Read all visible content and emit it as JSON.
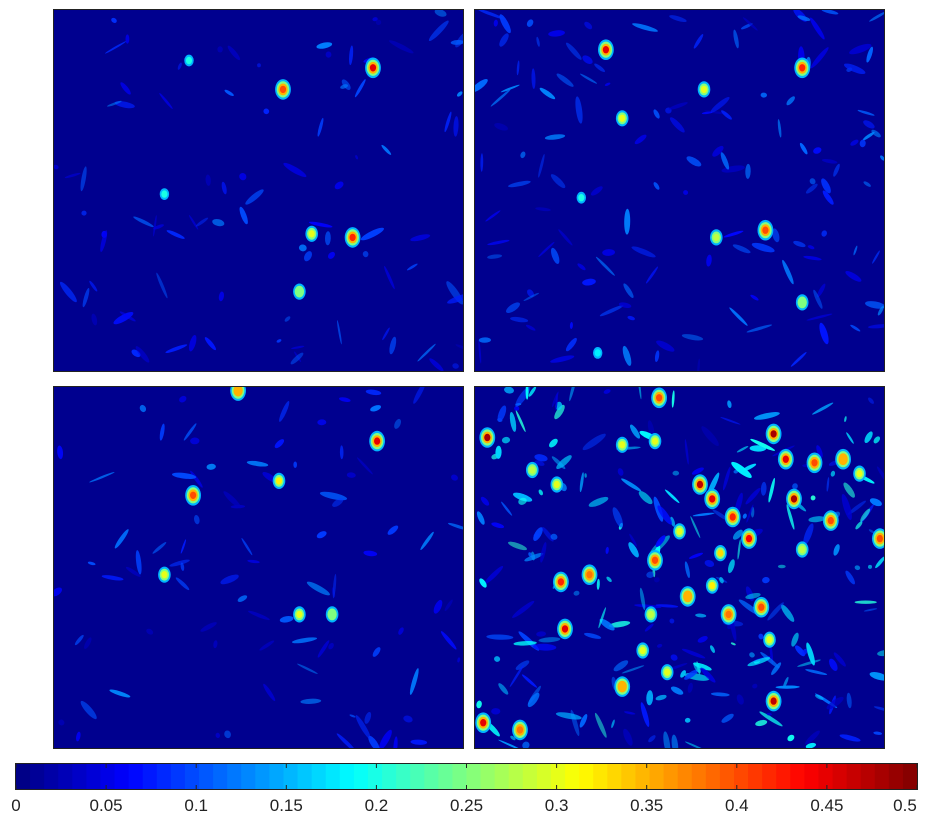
{
  "chart_data": {
    "type": "heatmap",
    "layout": "2x2 grid of heatmap panels sharing one horizontal colorbar",
    "colormap": "jet",
    "color_range": [
      0,
      0.5
    ],
    "axes": "hidden",
    "background_color": "#00008F",
    "panels": [
      {
        "position": "top-left",
        "intensity": "sparse",
        "max_value": 0.5,
        "hotspots": [
          [
            0.78,
            0.16,
            0.45
          ],
          [
            0.56,
            0.22,
            0.4
          ],
          [
            0.73,
            0.63,
            0.42
          ],
          [
            0.63,
            0.62,
            0.3
          ],
          [
            0.6,
            0.78,
            0.25
          ],
          [
            0.27,
            0.51,
            0.2
          ],
          [
            0.33,
            0.14,
            0.2
          ]
        ]
      },
      {
        "position": "top-right",
        "intensity": "sparse-moderate",
        "max_value": 0.5,
        "hotspots": [
          [
            0.32,
            0.11,
            0.45
          ],
          [
            0.8,
            0.16,
            0.42
          ],
          [
            0.56,
            0.22,
            0.3
          ],
          [
            0.71,
            0.61,
            0.4
          ],
          [
            0.59,
            0.63,
            0.28
          ],
          [
            0.36,
            0.3,
            0.3
          ],
          [
            0.26,
            0.52,
            0.2
          ],
          [
            0.8,
            0.81,
            0.25
          ],
          [
            0.3,
            0.95,
            0.18
          ]
        ]
      },
      {
        "position": "bottom-left",
        "intensity": "sparse",
        "max_value": 0.5,
        "hotspots": [
          [
            0.79,
            0.15,
            0.45
          ],
          [
            0.34,
            0.3,
            0.4
          ],
          [
            0.55,
            0.26,
            0.32
          ],
          [
            0.6,
            0.63,
            0.3
          ],
          [
            0.27,
            0.52,
            0.3
          ],
          [
            0.45,
            0.01,
            0.35
          ],
          [
            0.68,
            0.63,
            0.25
          ]
        ]
      },
      {
        "position": "bottom-right",
        "intensity": "dense",
        "max_value": 0.5,
        "hotspots": [
          [
            0.03,
            0.14,
            0.48
          ],
          [
            0.73,
            0.13,
            0.48
          ],
          [
            0.76,
            0.2,
            0.45
          ],
          [
            0.83,
            0.21,
            0.4
          ],
          [
            0.55,
            0.27,
            0.47
          ],
          [
            0.58,
            0.31,
            0.45
          ],
          [
            0.63,
            0.36,
            0.42
          ],
          [
            0.67,
            0.42,
            0.44
          ],
          [
            0.78,
            0.31,
            0.48
          ],
          [
            0.87,
            0.37,
            0.4
          ],
          [
            0.99,
            0.42,
            0.4
          ],
          [
            0.21,
            0.54,
            0.42
          ],
          [
            0.28,
            0.52,
            0.38
          ],
          [
            0.44,
            0.48,
            0.4
          ],
          [
            0.52,
            0.58,
            0.35
          ],
          [
            0.62,
            0.63,
            0.38
          ],
          [
            0.7,
            0.61,
            0.4
          ],
          [
            0.72,
            0.7,
            0.3
          ],
          [
            0.58,
            0.55,
            0.32
          ],
          [
            0.22,
            0.67,
            0.45
          ],
          [
            0.41,
            0.73,
            0.3
          ],
          [
            0.43,
            0.63,
            0.28
          ],
          [
            0.36,
            0.83,
            0.35
          ],
          [
            0.47,
            0.79,
            0.3
          ],
          [
            0.73,
            0.87,
            0.47
          ],
          [
            0.11,
            0.95,
            0.38
          ],
          [
            0.02,
            0.93,
            0.45
          ],
          [
            0.2,
            0.27,
            0.3
          ],
          [
            0.14,
            0.23,
            0.28
          ],
          [
            0.36,
            0.16,
            0.3
          ],
          [
            0.44,
            0.15,
            0.3
          ],
          [
            0.9,
            0.2,
            0.35
          ],
          [
            0.94,
            0.24,
            0.3
          ],
          [
            0.5,
            0.4,
            0.3
          ],
          [
            0.45,
            0.03,
            0.4
          ],
          [
            0.6,
            0.46,
            0.33
          ],
          [
            0.8,
            0.45,
            0.28
          ]
        ]
      }
    ],
    "colorbar": {
      "orientation": "horizontal",
      "position": "bottom",
      "min": 0,
      "max": 0.5,
      "levels": 64,
      "tick_values": [
        0,
        0.05,
        0.1,
        0.15,
        0.2,
        0.25,
        0.3,
        0.35,
        0.4,
        0.45,
        0.5
      ],
      "tick_labels": [
        "0",
        "0.05",
        "0.1",
        "0.15",
        "0.2",
        "0.25",
        "0.3",
        "0.35",
        "0.4",
        "0.45",
        "0.5"
      ]
    }
  }
}
